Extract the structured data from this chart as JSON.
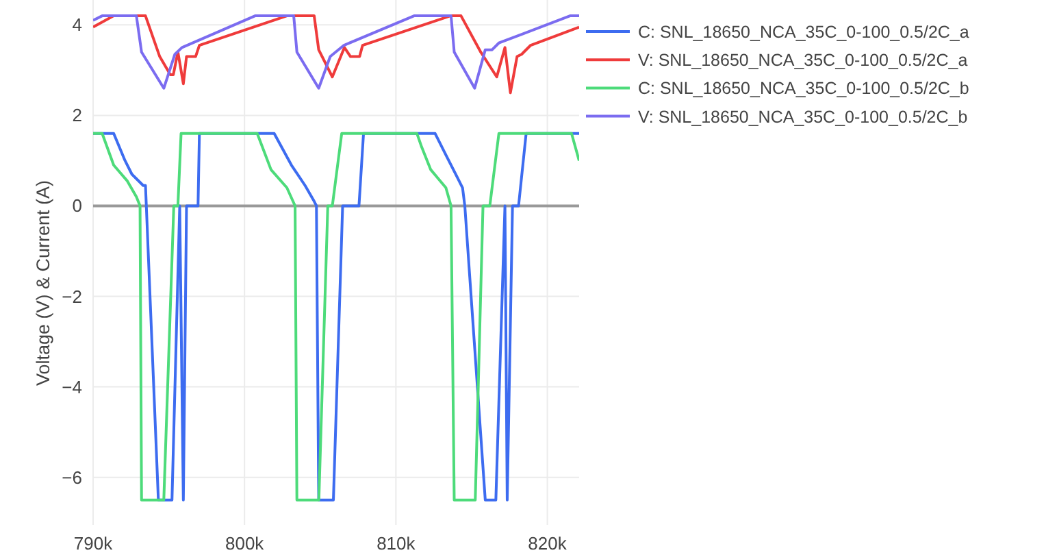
{
  "chart_data": {
    "type": "line",
    "ylabel": "Voltage (V) & Current (A)",
    "xlim": [
      790000,
      822100
    ],
    "ylim": [
      -7.05,
      4.55
    ],
    "xticks": [
      {
        "value": 790000,
        "label": "790k"
      },
      {
        "value": 800000,
        "label": "800k"
      },
      {
        "value": 810000,
        "label": "810k"
      },
      {
        "value": 820000,
        "label": "820k"
      }
    ],
    "yticks": [
      {
        "value": -6,
        "label": "−6"
      },
      {
        "value": -4,
        "label": "−4"
      },
      {
        "value": -2,
        "label": "−2"
      },
      0,
      2,
      4
    ],
    "grid": true,
    "legend": "top right",
    "marker": "none",
    "line_style": "solid",
    "series": [
      {
        "name": "C: SNL_18650_NCA_35C_0-100_0.5/2C_a",
        "color": "#3d6cf0",
        "x": [
          790000,
          791360,
          792110,
          792560,
          793310,
          793460,
          794310,
          795210,
          795720,
          795960,
          796170,
          796930,
          797020,
          801960,
          803100,
          804000,
          804600,
          804750,
          804900,
          805870,
          806480,
          807560,
          807860,
          812590,
          813340,
          814100,
          814400,
          814550,
          815900,
          816600,
          817200,
          817350,
          817700,
          818100,
          818600,
          822100
        ],
        "values": [
          1.6,
          1.6,
          1.0,
          0.7,
          0.45,
          0.45,
          -6.5,
          -6.5,
          0,
          -6.5,
          0,
          0,
          1.6,
          1.6,
          0.9,
          0.45,
          0.1,
          0,
          -6.5,
          -6.5,
          0,
          0,
          1.6,
          1.6,
          1.1,
          0.6,
          0.4,
          0,
          -6.5,
          -6.5,
          0,
          -6.5,
          0,
          0,
          1.6,
          1.6
        ]
      },
      {
        "name": "V: SNL_18650_NCA_35C_0-100_0.5/2C_a",
        "color": "#ef3b3b",
        "x": [
          790000,
          791360,
          793460,
          794400,
          795100,
          795300,
          795600,
          795960,
          796170,
          796770,
          797020,
          802800,
          804600,
          804900,
          805800,
          806600,
          807000,
          807600,
          807800,
          813600,
          814300,
          815600,
          816660,
          817200,
          817560,
          818000,
          818300,
          818900,
          822100
        ],
        "values": [
          3.95,
          4.2,
          4.2,
          3.3,
          2.9,
          2.9,
          3.4,
          2.7,
          3.3,
          3.3,
          3.55,
          4.2,
          4.2,
          3.45,
          2.85,
          3.5,
          3.3,
          3.3,
          3.55,
          4.2,
          4.2,
          3.4,
          2.85,
          3.5,
          2.5,
          3.3,
          3.35,
          3.55,
          3.95
        ]
      },
      {
        "name": "C: SNL_18650_NCA_35C_0-100_0.5/2C_b",
        "color": "#4ddb7a",
        "x": [
          790000,
          790600,
          791360,
          792260,
          792860,
          793100,
          793200,
          794670,
          795330,
          795600,
          795810,
          800840,
          801750,
          802800,
          803340,
          803460,
          804910,
          805500,
          805800,
          806420,
          811390,
          811700,
          812300,
          813300,
          813640,
          813850,
          815240,
          815750,
          816200,
          816800,
          821600,
          822100
        ],
        "values": [
          1.6,
          1.6,
          0.9,
          0.55,
          0.2,
          0,
          -6.5,
          -6.5,
          0,
          0,
          1.6,
          1.6,
          0.8,
          0.4,
          0,
          -6.5,
          -6.5,
          0,
          0,
          1.6,
          1.6,
          1.3,
          0.8,
          0.4,
          0,
          -6.5,
          -6.5,
          0,
          0,
          1.6,
          1.6,
          1.0
        ]
      },
      {
        "name": "V: SNL_18650_NCA_35C_0-100_0.5/2C_b",
        "color": "#7b6cf0",
        "x": [
          790000,
          790600,
          792860,
          793200,
          794670,
          795400,
          795870,
          800700,
          803250,
          803460,
          804900,
          805660,
          806570,
          811200,
          813640,
          813850,
          815200,
          815900,
          816350,
          816800,
          821500,
          822100
        ],
        "values": [
          4.1,
          4.2,
          4.2,
          3.4,
          2.6,
          3.35,
          3.5,
          4.2,
          4.2,
          3.4,
          2.6,
          3.3,
          3.55,
          4.2,
          4.2,
          3.4,
          2.6,
          3.45,
          3.45,
          3.6,
          4.2,
          4.2
        ]
      }
    ]
  }
}
